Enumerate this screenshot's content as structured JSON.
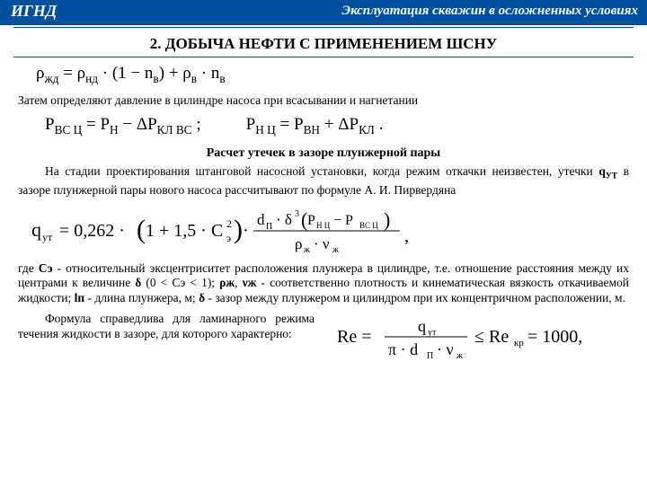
{
  "header": {
    "left": "ИГНД",
    "right": "Эксплуатация скважин в осложненных условиях"
  },
  "section_title": "2. ДОБЫЧА НЕФТИ С ПРИМЕНЕНИЕМ ШСНУ",
  "formula1": "ρ<sub>жд</sub> = ρ<sub>нд</sub> · (1 − n<sub>в</sub>) + ρ<sub>в</sub> · n<sub>в</sub>",
  "para1": "Затем определяют давление в цилиндре насоса при всасывании и нагнетании",
  "formula2a": "P<sub>ВС Ц</sub> = P<sub>Н</sub> − ΔP<sub>КЛ ВС</sub>  ;",
  "formula2b": "P<sub>Н Ц</sub> = P<sub>ВН</sub> + ΔP<sub>КЛ</sub>  .",
  "subtitle": "Расчет утечек в зазоре плунжерной пары",
  "para2_prefix": "На стадии проектирования штанговой насосной установки, когда режим откачки неизвестен, утечки ",
  "para2_q": "q<sub>УТ</sub>",
  "para2_suffix": " в зазоре плунжерной пары нового насоса рассчитывают по формуле А. И. Пирвердяна",
  "para3_prefix": "где ",
  "para3_ce": "Сэ",
  "para3_1": " - относительный эксцентриситет расположения плунжера в цилиндре, т.е. отношение расстояния между их центрами к величине ",
  "para3_delta1": "δ",
  "para3_2": " (0 < Сэ < 1); ",
  "para3_rho": "ρж",
  "para3_3": ", ",
  "para3_nu": "νж",
  "para3_4": " - соответственно плотность и кинематическая вязкость откачиваемой жидкости; ",
  "para3_lp": "lп",
  "para3_5": " - длина плунжера, м; ",
  "para3_delta2": "δ",
  "para3_6": " - зазор между плунжером и цилиндром при их концентричном расположении, м.",
  "bottom_prefix": "Формула справедлива для ламинарного режима течения жидкости в зазоре, для которого характерно:",
  "colors": {
    "header_bg": "#0050a0",
    "header_text": "#ffffff",
    "body_bg": "#ffffff",
    "text": "#000000",
    "bold_blue": "#1040a0"
  }
}
